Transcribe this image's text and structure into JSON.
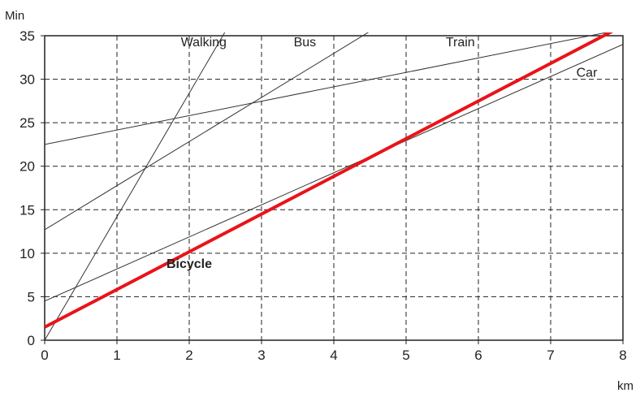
{
  "chart_data": {
    "type": "line",
    "title": "",
    "xlabel": "km",
    "ylabel": "Min",
    "xlim": [
      0,
      8
    ],
    "ylim": [
      0,
      35
    ],
    "x_ticks": [
      0,
      1,
      2,
      3,
      4,
      5,
      6,
      7,
      8
    ],
    "y_ticks": [
      0,
      5,
      10,
      15,
      20,
      25,
      30,
      35
    ],
    "grid": "dashed",
    "series": [
      {
        "name": "Walking",
        "color": "#333333",
        "points": [
          [
            0,
            0
          ],
          [
            2.5,
            35.5
          ]
        ]
      },
      {
        "name": "Bus",
        "color": "#333333",
        "points": [
          [
            0,
            12.7
          ],
          [
            4.5,
            35.5
          ]
        ]
      },
      {
        "name": "Train",
        "color": "#333333",
        "points": [
          [
            0,
            22.5
          ],
          [
            7.85,
            35.5
          ]
        ]
      },
      {
        "name": "Car",
        "color": "#333333",
        "points": [
          [
            0,
            4.5
          ],
          [
            8,
            34
          ]
        ]
      },
      {
        "name": "Bicycle",
        "color": "#e8141a",
        "bold": true,
        "points": [
          [
            0,
            1.5
          ],
          [
            7.85,
            35.5
          ]
        ]
      }
    ]
  }
}
